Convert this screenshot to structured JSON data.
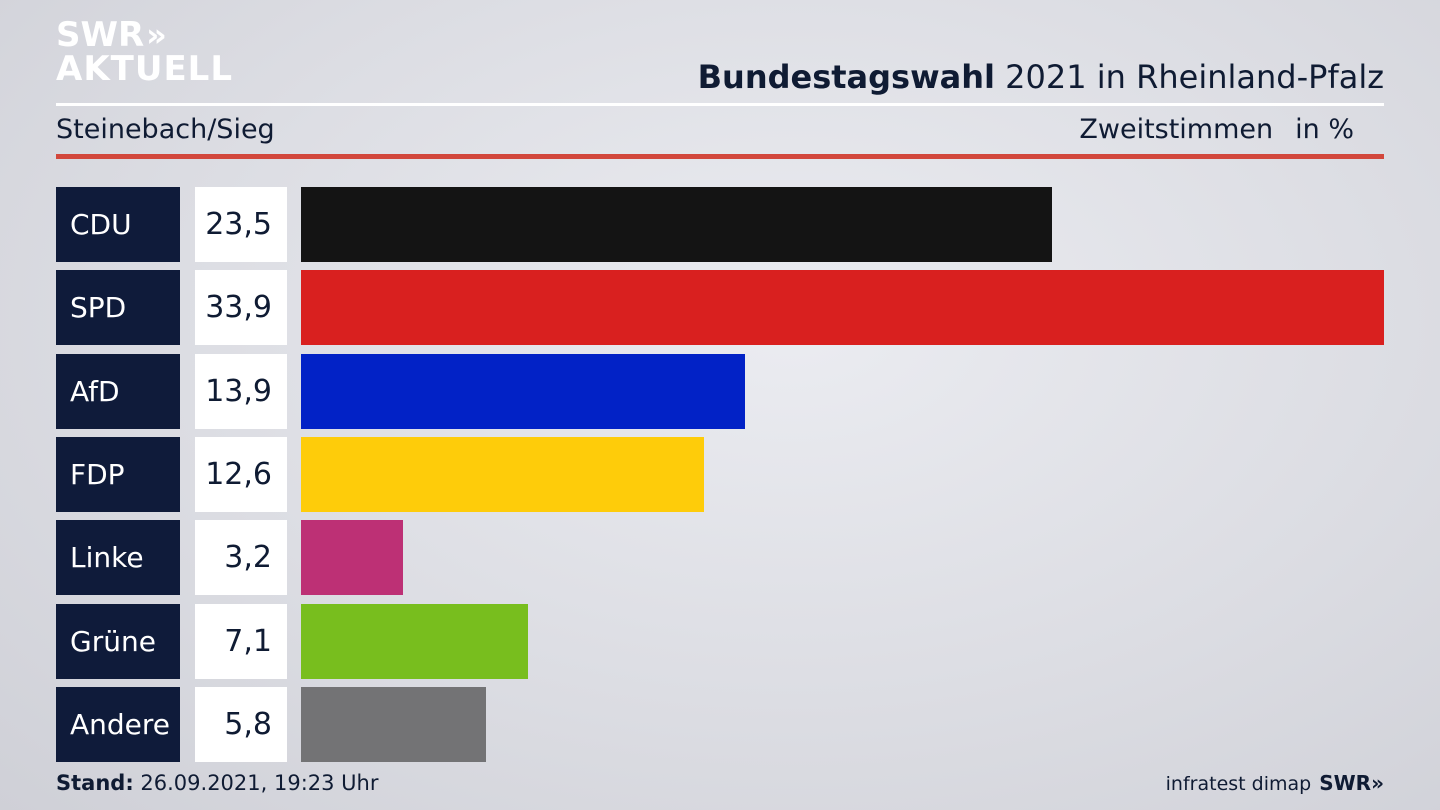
{
  "brand": {
    "line1": "SWR",
    "line1_mark": "»",
    "line2": "AKTUELL"
  },
  "header": {
    "title_bold": "Bundestagswahl",
    "title_rest": " 2021 in Rheinland-Pfalz",
    "subtitle": "Steinebach/Sieg",
    "measure": "Zweitstimmen",
    "unit": "in %"
  },
  "chart_data": {
    "type": "bar",
    "orientation": "horizontal",
    "categories": [
      "CDU",
      "SPD",
      "AfD",
      "FDP",
      "Linke",
      "Grüne",
      "Andere"
    ],
    "values": [
      23.5,
      33.9,
      13.9,
      12.6,
      3.2,
      7.1,
      5.8
    ],
    "value_labels": [
      "23,5",
      "33,9",
      "13,9",
      "12,6",
      "3,2",
      "7,1",
      "5,8"
    ],
    "colors": [
      "#141414",
      "#d9201f",
      "#0222c6",
      "#fecc0a",
      "#bd3075",
      "#78be1e",
      "#737375"
    ],
    "xlim": [
      0,
      33.9
    ],
    "grid": false,
    "legend": "none"
  },
  "footer": {
    "stand_label": "Stand:",
    "stand_value": " 26.09.2021, 19:23 Uhr",
    "source": "infratest dimap",
    "brand": "SWR»"
  }
}
